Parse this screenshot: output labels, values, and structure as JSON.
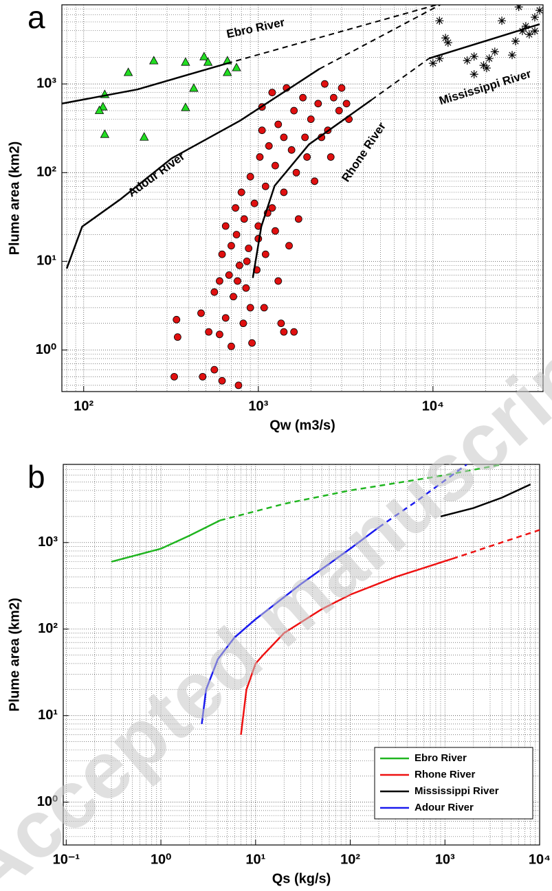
{
  "chart_data": [
    {
      "type": "scatter",
      "panel_label": "a",
      "xlabel": "Qw (m3/s)",
      "ylabel": "Plume area (km2)",
      "xlim": [
        75,
        42700
      ],
      "ylim": [
        0.34,
        7800
      ],
      "log_x": true,
      "log_y": true,
      "grid": true,
      "xticks": [
        {
          "value": 100,
          "label": "10²"
        },
        {
          "value": 1000,
          "label": "10³"
        },
        {
          "value": 10000,
          "label": "10⁴"
        }
      ],
      "yticks": [
        {
          "value": 1,
          "label": "10⁰"
        },
        {
          "value": 10,
          "label": "10¹"
        },
        {
          "value": 100,
          "label": "10²"
        },
        {
          "value": 1000,
          "label": "10³"
        }
      ],
      "series": [
        {
          "marker": "triangle",
          "color": "#22dd22",
          "x": [
            180,
            252,
            383,
            489,
            515,
            665,
            665,
            750,
            427,
            383,
            222,
            132,
            132,
            129,
            123
          ],
          "values": [
            1355,
            1835,
            1770,
            2040,
            1770,
            1835,
            1355,
            1535,
            900,
            545,
            253,
            272,
            765,
            555,
            505
          ]
        },
        {
          "marker": "circle",
          "color": "#e01010",
          "x": [
            330,
            340,
            345,
            480,
            470,
            520,
            560,
            560,
            600,
            600,
            620,
            620,
            650,
            650,
            680,
            700,
            700,
            720,
            740,
            750,
            770,
            780,
            800,
            820,
            830,
            850,
            880,
            900,
            920,
            950,
            980,
            1000,
            1020,
            1050,
            1050,
            1080,
            1100,
            1100,
            1150,
            1200,
            1200,
            1250,
            1300,
            1300,
            1350,
            1400,
            1400,
            1450,
            1500,
            1550,
            1600,
            1650,
            1700,
            1800,
            1850,
            1900,
            2000,
            2100,
            2200,
            2300,
            2400,
            2500,
            2600,
            2700,
            2900,
            3000,
            3200,
            3300,
            860,
            900,
            760,
            1000,
            1130,
            1250,
            1400,
            1600
          ],
          "values": [
            0.5,
            2.2,
            1.4,
            0.5,
            2.6,
            1.6,
            0.6,
            4.5,
            1.5,
            6,
            12,
            0.45,
            2.3,
            25,
            7,
            15,
            1.1,
            4,
            40,
            20,
            0.4,
            9,
            60,
            2,
            30,
            5,
            14,
            90,
            1.2,
            45,
            8,
            25,
            150,
            300,
            550,
            3,
            12,
            70,
            200,
            40,
            800,
            120,
            350,
            6,
            2,
            60,
            250,
            900,
            15,
            180,
            500,
            100,
            30,
            700,
            250,
            150,
            400,
            80,
            600,
            250,
            1000,
            300,
            150,
            700,
            500,
            900,
            600,
            400,
            10,
            3,
            6,
            18,
            35,
            22,
            1.6,
            1.6
          ]
        },
        {
          "marker": "asterisk",
          "color": "#000000",
          "x": [
            10900,
            11800,
            12200,
            10900,
            10000,
            15700,
            17200,
            19500,
            21000,
            20300,
            22600,
            28400,
            29700,
            32500,
            34000,
            38300,
            35600,
            38300,
            40800,
            31000,
            24800,
            17200
          ],
          "values": [
            5160,
            3300,
            2920,
            1935,
            1710,
            1835,
            2040,
            1620,
            1935,
            1510,
            2310,
            2115,
            3030,
            3950,
            4480,
            5650,
            3615,
            3950,
            6750,
            7380,
            5160,
            1285
          ]
        }
      ],
      "lines": [
        {
          "x": [
            75,
            203,
            660
          ],
          "values": [
            600,
            867,
            1700
          ],
          "dashed_x": [
            660,
            10500
          ],
          "dashed_values": [
            1700,
            7800
          ]
        },
        {
          "x": [
            80,
            98,
            162,
            319,
            790,
            2240
          ],
          "values": [
            8.3,
            24.6,
            50,
            145,
            388,
            1480
          ],
          "dashed_x": [
            2240,
            11000
          ],
          "dashed_values": [
            1480,
            7800
          ]
        },
        {
          "x": [
            930,
            1040,
            1240,
            1950,
            4440
          ],
          "values": [
            6.5,
            24.6,
            71,
            208,
            660
          ],
          "dashed_x": [
            4440,
            9500
          ],
          "dashed_values": [
            660,
            1940
          ]
        },
        {
          "x": [
            9500,
            40800
          ],
          "values": [
            1940,
            4720
          ]
        }
      ],
      "annotations": [
        "Ebro River",
        "Adour River",
        "Rhone River",
        "Mississippi River"
      ]
    },
    {
      "type": "line",
      "panel_label": "b",
      "xlabel": "Qs (kg/s)",
      "ylabel": "Plume area (km2)",
      "xlim": [
        0.093,
        10000
      ],
      "ylim": [
        0.32,
        8000
      ],
      "log_x": true,
      "log_y": true,
      "grid": true,
      "legend": "lower right",
      "xticks": [
        {
          "value": 0.1,
          "label": "10⁻¹"
        },
        {
          "value": 1,
          "label": "10⁰"
        },
        {
          "value": 10,
          "label": "10¹"
        },
        {
          "value": 100,
          "label": "10²"
        },
        {
          "value": 1000,
          "label": "10³"
        },
        {
          "value": 10000,
          "label": "10⁴"
        }
      ],
      "yticks": [
        {
          "value": 1,
          "label": "10⁰"
        },
        {
          "value": 10,
          "label": "10¹"
        },
        {
          "value": 100,
          "label": "10²"
        },
        {
          "value": 1000,
          "label": "10³"
        }
      ],
      "series": [
        {
          "name": "Ebro River",
          "color": "#1fb51f",
          "x": [
            0.3,
            1,
            2,
            4.2
          ],
          "values": [
            600,
            850,
            1200,
            1800
          ],
          "dashed_x": [
            4.2,
            20,
            100,
            1000,
            4000
          ],
          "dashed_values": [
            1800,
            2800,
            4000,
            6000,
            8000
          ]
        },
        {
          "name": "Rhone River",
          "color": "#ee1111",
          "x": [
            7,
            8,
            10,
            12,
            20,
            50,
            100,
            300,
            1200
          ],
          "values": [
            6,
            20,
            40,
            50,
            90,
            170,
            250,
            400,
            650
          ],
          "dashed_x": [
            1200,
            10000
          ],
          "dashed_values": [
            650,
            1400
          ]
        },
        {
          "name": "Mississippi River",
          "color": "#000000",
          "x": [
            900,
            2000,
            4000,
            8000
          ],
          "values": [
            2000,
            2500,
            3300,
            4700
          ]
        },
        {
          "name": "Adour River",
          "color": "#1a1aee",
          "x": [
            2.7,
            3,
            4,
            6,
            10,
            30,
            100,
            200
          ],
          "values": [
            8,
            20,
            45,
            80,
            130,
            330,
            850,
            1500
          ],
          "dashed_x": [
            200,
            500,
            1700
          ],
          "dashed_values": [
            1500,
            3000,
            8000
          ]
        }
      ]
    }
  ],
  "watermark": "Accepted manuscript"
}
